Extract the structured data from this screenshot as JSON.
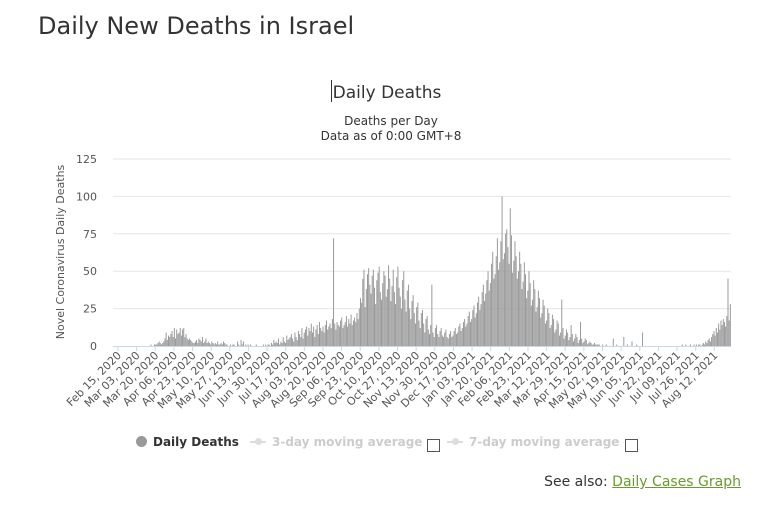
{
  "page": {
    "title": "Daily New Deaths in Israel"
  },
  "legend": {
    "items": [
      {
        "label": "Daily Deaths",
        "color": "#999999",
        "active": true
      },
      {
        "label": "3-day moving average",
        "color": "#dddddd",
        "active": false
      },
      {
        "label": "7-day moving average",
        "color": "#dddddd",
        "active": false
      }
    ]
  },
  "see_also": {
    "prefix": "See also:",
    "link_label": "Daily Cases Graph",
    "link_color": "#6b9a2c"
  },
  "chart_data": {
    "type": "bar",
    "title": "Daily Deaths",
    "subtitle": [
      "Deaths per Day",
      "Data as of 0:00 GMT+8"
    ],
    "xlabel": "",
    "ylabel": "Novel Coronavirus Daily Deaths",
    "ylim": [
      0,
      125
    ],
    "yticks": [
      0,
      25,
      50,
      75,
      100,
      125
    ],
    "grid": true,
    "legend_position": "bottom",
    "bar_color": "#999999",
    "x_start": "2020-02-15",
    "xtick_labels": [
      "Feb 15, 2020",
      "Mar 03, 2020",
      "Mar 20, 2020",
      "Apr 06, 2020",
      "Apr 23, 2020",
      "May 10, 2020",
      "May 27, 2020",
      "Jun 13, 2020",
      "Jun 30, 2020",
      "Jul 17, 2020",
      "Aug 03, 2020",
      "Aug 20, 2020",
      "Sep 06, 2020",
      "Sep 23, 2020",
      "Oct 10, 2020",
      "Oct 27, 2020",
      "Nov 13, 2020",
      "Nov 30, 2020",
      "Dec 17, 2020",
      "Jan 03, 2021",
      "Jan 20, 2021",
      "Feb 06, 2021",
      "Feb 23, 2021",
      "Mar 12, 2021",
      "Mar 29, 2021",
      "Apr 15, 2021",
      "May 02, 2021",
      "May 19, 2021",
      "Jun 05, 2021",
      "Jun 22, 2021",
      "Jul 09, 2021",
      "Jul 26, 2021",
      "Aug 12, 2021"
    ],
    "values": [
      0,
      0,
      0,
      0,
      0,
      0,
      0,
      0,
      0,
      0,
      0,
      0,
      0,
      0,
      0,
      0,
      0,
      0,
      0,
      0,
      0,
      0,
      0,
      0,
      0,
      0,
      0,
      0,
      0,
      0,
      0,
      0,
      1,
      0,
      0,
      1,
      1,
      1,
      2,
      3,
      2,
      1,
      2,
      3,
      5,
      9,
      4,
      7,
      6,
      8,
      10,
      6,
      12,
      5,
      11,
      8,
      9,
      12,
      7,
      11,
      12,
      6,
      8,
      5,
      4,
      5,
      4,
      3,
      2,
      2,
      3,
      4,
      2,
      5,
      4,
      3,
      6,
      2,
      3,
      5,
      2,
      3,
      2,
      1,
      3,
      2,
      1,
      2,
      1,
      3,
      1,
      1,
      2,
      1,
      3,
      2,
      1,
      1,
      0,
      0,
      1,
      0,
      1,
      1,
      0,
      0,
      3,
      1,
      0,
      4,
      1,
      3,
      0,
      1,
      0,
      1,
      0,
      1,
      0,
      0,
      0,
      0,
      1,
      0,
      0,
      0,
      0,
      0,
      1,
      0,
      1,
      0,
      1,
      1,
      0,
      2,
      1,
      4,
      2,
      3,
      2,
      5,
      1,
      3,
      2,
      6,
      3,
      2,
      7,
      4,
      5,
      6,
      8,
      5,
      3,
      9,
      6,
      4,
      10,
      8,
      6,
      12,
      5,
      9,
      11,
      13,
      7,
      12,
      10,
      15,
      9,
      13,
      6,
      11,
      14,
      8,
      16,
      12,
      10,
      13,
      9,
      14,
      17,
      11,
      13,
      15,
      12,
      18,
      72,
      15,
      11,
      16,
      14,
      13,
      17,
      19,
      12,
      14,
      16,
      20,
      13,
      18,
      15,
      21,
      14,
      17,
      19,
      16,
      22,
      18,
      25,
      32,
      29,
      45,
      51,
      26,
      38,
      48,
      52,
      41,
      35,
      47,
      51,
      39,
      28,
      44,
      49,
      53,
      36,
      31,
      42,
      50,
      47,
      33,
      38,
      54,
      45,
      30,
      40,
      51,
      36,
      28,
      46,
      53,
      39,
      33,
      25,
      44,
      50,
      31,
      23,
      37,
      41,
      25,
      18,
      30,
      34,
      22,
      15,
      26,
      29,
      17,
      12,
      22,
      24,
      15,
      9,
      18,
      20,
      11,
      8,
      14,
      41,
      9,
      6,
      12,
      14,
      8,
      6,
      10,
      12,
      7,
      6,
      9,
      11,
      6,
      5,
      8,
      10,
      6,
      7,
      10,
      12,
      8,
      9,
      13,
      15,
      10,
      12,
      16,
      18,
      13,
      15,
      20,
      23,
      16,
      18,
      24,
      27,
      19,
      22,
      29,
      33,
      24,
      28,
      36,
      41,
      30,
      35,
      44,
      50,
      37,
      42,
      55,
      63,
      45,
      48,
      60,
      72,
      51,
      56,
      70,
      100,
      58,
      62,
      75,
      78,
      66,
      55,
      92,
      74,
      49,
      57,
      70,
      60,
      45,
      50,
      63,
      55,
      38,
      43,
      56,
      48,
      32,
      37,
      50,
      42,
      27,
      31,
      44,
      38,
      23,
      26,
      37,
      32,
      19,
      22,
      31,
      27,
      15,
      17,
      25,
      22,
      12,
      14,
      21,
      18,
      9,
      11,
      17,
      15,
      7,
      9,
      31,
      12,
      5,
      7,
      11,
      9,
      4,
      6,
      14,
      8,
      3,
      5,
      8,
      6,
      2,
      4,
      16,
      5,
      2,
      3,
      5,
      4,
      1,
      2,
      3,
      2,
      1,
      1,
      2,
      1,
      1,
      1,
      1,
      0,
      0,
      1,
      0,
      0,
      1,
      0,
      0,
      0,
      0,
      0,
      5,
      0,
      0,
      1,
      0,
      0,
      0,
      0,
      0,
      6,
      0,
      0,
      1,
      0,
      0,
      0,
      3,
      0,
      0,
      0,
      1,
      0,
      0,
      0,
      0,
      9,
      0,
      0,
      0,
      0,
      0,
      0,
      0,
      0,
      0,
      0,
      0,
      0,
      0,
      0,
      0,
      0,
      0,
      0,
      0,
      0,
      0,
      0,
      0,
      0,
      0,
      0,
      0,
      0,
      0,
      0,
      0,
      0,
      0,
      1,
      0,
      0,
      1,
      0,
      0,
      0,
      1,
      0,
      0,
      1,
      0,
      1,
      0,
      1,
      1,
      0,
      1,
      2,
      1,
      3,
      2,
      4,
      5,
      3,
      6,
      8,
      10,
      7,
      12,
      9,
      15,
      11,
      17,
      14,
      18,
      16,
      13,
      20,
      45,
      17,
      28
    ]
  }
}
